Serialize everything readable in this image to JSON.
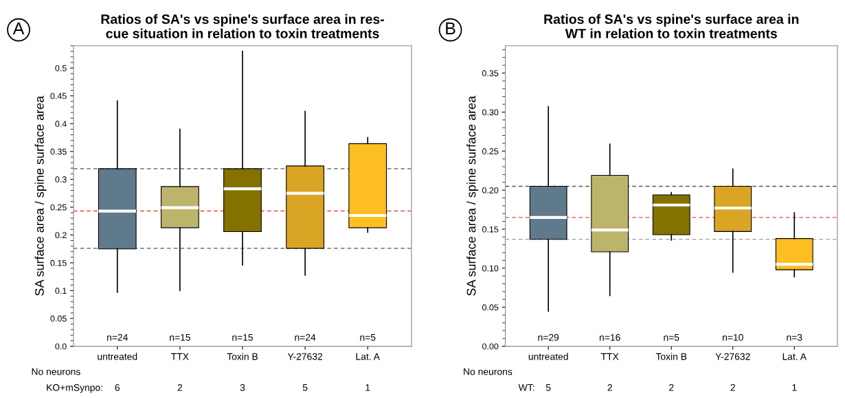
{
  "chart_data": [
    {
      "type": "box",
      "title": "Ratios of SA's vs spine's surface area in res-\ncue situation in relation to toxin treatments",
      "ylabel": "SA surface area / spine surface area",
      "categories": [
        "untreated",
        "TTX",
        "Toxin B",
        "Y-27632",
        "Lat. A"
      ],
      "colors": [
        "#5f7a8c",
        "#bdb46c",
        "#857100",
        "#daa524",
        "#fdbe24"
      ],
      "boxes": [
        {
          "low": 0.097,
          "q1": 0.175,
          "median": 0.243,
          "q3": 0.319,
          "high": 0.441
        },
        {
          "low": 0.1,
          "q1": 0.213,
          "median": 0.249,
          "q3": 0.287,
          "high": 0.39
        },
        {
          "low": 0.146,
          "q1": 0.206,
          "median": 0.283,
          "q3": 0.319,
          "high": 0.53
        },
        {
          "low": 0.128,
          "q1": 0.176,
          "median": 0.275,
          "q3": 0.324,
          "high": 0.422
        },
        {
          "low": 0.205,
          "q1": 0.213,
          "median": 0.235,
          "q3": 0.364,
          "high": 0.375
        }
      ],
      "ylim": [
        0,
        0.54
      ],
      "yticks": [
        {
          "value": 0,
          "label": "0.0"
        },
        0.05,
        0.1,
        0.15,
        0.2,
        0.25,
        0.3,
        0.35,
        0.4,
        0.45,
        0.5
      ],
      "ref_lines": [
        {
          "axis": "y",
          "value": 0.319,
          "color": "#555555",
          "line_style": "dashed"
        },
        {
          "axis": "y",
          "value": 0.243,
          "color": "#ff3b3b",
          "line_style": "dashed"
        },
        {
          "axis": "y",
          "value": 0.176,
          "color": "#555555",
          "line_style": "dashed"
        }
      ],
      "annotations": [
        "A",
        "No neurons",
        "KO+mSynpo:",
        "6",
        "2",
        "3",
        "5",
        "1",
        "n=24",
        "n=15",
        "n=15",
        "n=24",
        "n=5"
      ],
      "grid": false,
      "legend": false
    },
    {
      "type": "box",
      "title": "Ratios of SA's vs spine's surface area in\nWT in relation to toxin treatments",
      "ylabel": "SA surface area / spine surface area",
      "categories": [
        "untreated",
        "TTX",
        "Toxin B",
        "Y-27632",
        "Lat. A"
      ],
      "colors": [
        "#5f7a8c",
        "#bdb46c",
        "#857100",
        "#daa524",
        "#fdbe24"
      ],
      "boxes": [
        {
          "low": 0.045,
          "q1": 0.137,
          "median": 0.165,
          "q3": 0.205,
          "high": 0.307
        },
        {
          "low": 0.065,
          "q1": 0.121,
          "median": 0.149,
          "q3": 0.219,
          "high": 0.259
        },
        {
          "low": 0.136,
          "q1": 0.143,
          "median": 0.181,
          "q3": 0.194,
          "high": 0.197
        },
        {
          "low": 0.095,
          "q1": 0.147,
          "median": 0.177,
          "q3": 0.205,
          "high": 0.227
        },
        {
          "low": 0.089,
          "q1": 0.098,
          "median": 0.105,
          "q3": 0.138,
          "high": 0.171
        }
      ],
      "ylim": [
        0,
        0.385
      ],
      "yticks": [
        {
          "value": 0,
          "label": "0.00"
        },
        {
          "value": 0.05,
          "label": "0.05"
        },
        {
          "value": 0.1,
          "label": "0.10"
        },
        {
          "value": 0.15,
          "label": "0.15"
        },
        {
          "value": 0.2,
          "label": "0.20"
        },
        {
          "value": 0.25,
          "label": "0.25"
        },
        {
          "value": 0.3,
          "label": "0.30"
        },
        {
          "value": 0.35,
          "label": "0.35"
        }
      ],
      "ref_lines": [
        {
          "axis": "y",
          "value": 0.205,
          "color": "#555555",
          "line_style": "dashed"
        },
        {
          "axis": "y",
          "value": 0.165,
          "color": "#ff3b3b",
          "line_style": "dashed"
        },
        {
          "axis": "y",
          "value": 0.137,
          "color": "#aaaaaa",
          "line_style": "dashed"
        }
      ],
      "annotations": [
        "B",
        "No neurons",
        "WT:",
        "5",
        "2",
        "2",
        "2",
        "1",
        "n=29",
        "n=16",
        "n=5",
        "n=10",
        "n=3"
      ],
      "grid": false,
      "legend": false
    }
  ]
}
